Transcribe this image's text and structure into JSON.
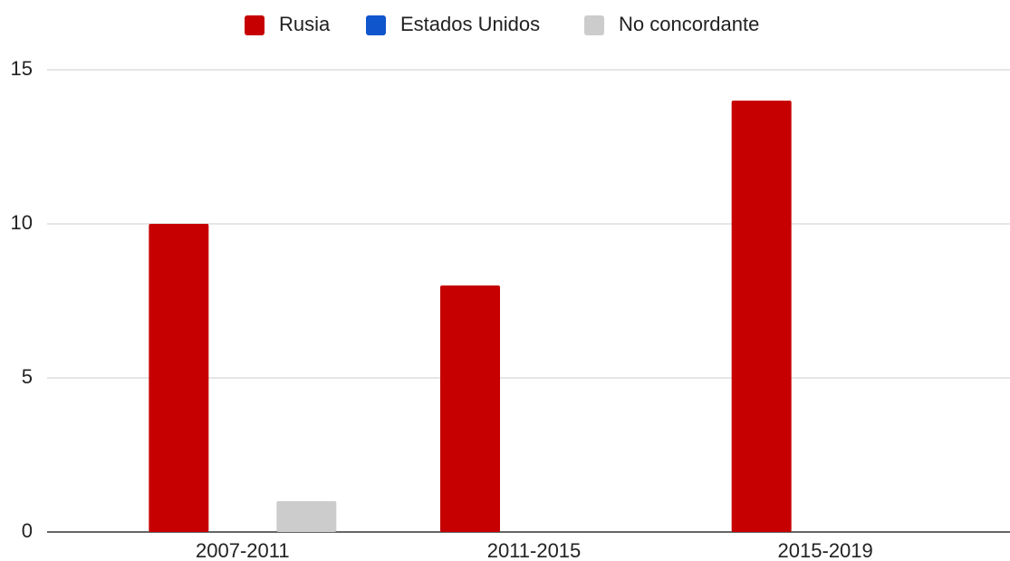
{
  "chart_data": {
    "type": "bar",
    "categories": [
      "2007-2011",
      "2011-2015",
      "2015-2019"
    ],
    "series": [
      {
        "name": "Rusia",
        "color": "#c60000",
        "values": [
          10,
          8,
          14
        ]
      },
      {
        "name": "Estados Unidos",
        "color": "#1155cc",
        "values": [
          0,
          0,
          0
        ]
      },
      {
        "name": "No concordante",
        "color": "#cccccc",
        "values": [
          1,
          0,
          0
        ]
      }
    ],
    "ylim": [
      0,
      15
    ],
    "yticks": [
      0,
      5,
      10,
      15
    ],
    "grid": true,
    "legend": "top"
  }
}
